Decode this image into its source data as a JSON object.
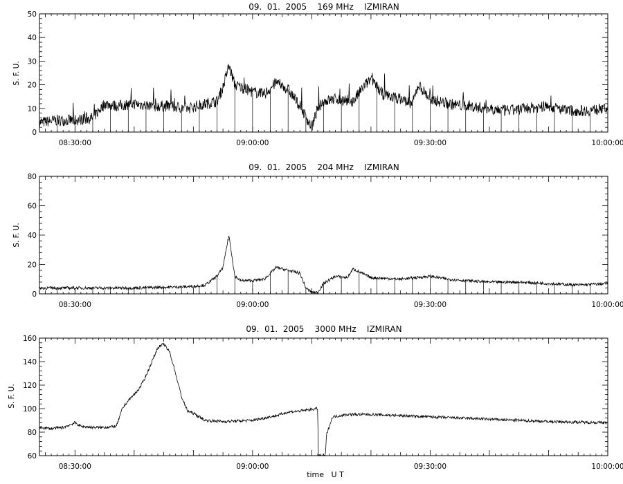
{
  "chart_data": [
    {
      "type": "line",
      "title": "09.  01.  2005    169 MHz    IZMIRAN",
      "ylabel": "S. F. U.",
      "xlabel": "",
      "xlim": [
        "08:24:00",
        "10:00:00"
      ],
      "ylim": [
        0,
        50
      ],
      "yticks": [
        0,
        10,
        20,
        30,
        40,
        50
      ],
      "xticks": [
        "08:30:00",
        "09:00:00",
        "09:30:00",
        "10:00:00"
      ],
      "series": [
        {
          "x": [
            "08:24",
            "08:27",
            "08:30",
            "08:33",
            "08:35",
            "08:37",
            "08:40",
            "08:43",
            "08:46",
            "08:49",
            "08:52",
            "08:54",
            "08:55",
            "08:56",
            "08:57",
            "08:58",
            "09:00",
            "09:02",
            "09:04",
            "09:06",
            "09:08",
            "09:10",
            "09:11",
            "09:12",
            "09:14",
            "09:17",
            "09:19",
            "09:20",
            "09:22",
            "09:25",
            "09:27",
            "09:28",
            "09:30",
            "09:33",
            "09:36",
            "09:40",
            "09:43",
            "09:46",
            "09:50",
            "09:53",
            "09:56",
            "10:00"
          ],
          "values": [
            4,
            5,
            5,
            6,
            12,
            11,
            12,
            11,
            11,
            10,
            12,
            13,
            19,
            28,
            20,
            19,
            17,
            16,
            21,
            18,
            11,
            2,
            10,
            13,
            14,
            13,
            20,
            22,
            16,
            14,
            12,
            20,
            14,
            12,
            11,
            10,
            9,
            10,
            11,
            9,
            9,
            10
          ]
        }
      ]
    },
    {
      "type": "line",
      "title": "09.  01.  2005    204 MHz    IZMIRAN",
      "ylabel": "S. F. U.",
      "xlabel": "",
      "xlim": [
        "08:24:00",
        "10:00:00"
      ],
      "ylim": [
        0,
        80
      ],
      "yticks": [
        0,
        20,
        40,
        60,
        80
      ],
      "xticks": [
        "08:30:00",
        "09:00:00",
        "09:30:00",
        "10:00:00"
      ],
      "series": [
        {
          "x": [
            "08:24",
            "08:30",
            "08:40",
            "08:50",
            "08:52",
            "08:54",
            "08:55",
            "08:56",
            "08:57",
            "08:58",
            "09:00",
            "09:02",
            "09:04",
            "09:06",
            "09:08",
            "09:09",
            "09:10",
            "09:11",
            "09:12",
            "09:14",
            "09:16",
            "09:17",
            "09:20",
            "09:25",
            "09:30",
            "09:33",
            "09:36",
            "09:40",
            "09:45",
            "09:50",
            "09:55",
            "10:00"
          ],
          "values": [
            4,
            4,
            4,
            5,
            6,
            12,
            18,
            40,
            12,
            9,
            9,
            10,
            18,
            16,
            14,
            4,
            1,
            1,
            7,
            12,
            11,
            17,
            11,
            10,
            12,
            10,
            9,
            8,
            8,
            7,
            6,
            7
          ]
        }
      ]
    },
    {
      "type": "line",
      "title": "09.  01.  2005    3000 MHz    IZMIRAN",
      "ylabel": "S. F. U.",
      "xlabel": "time   U T",
      "xlim": [
        "08:24:00",
        "10:00:00"
      ],
      "ylim": [
        60,
        160
      ],
      "yticks": [
        60,
        80,
        100,
        120,
        140,
        160
      ],
      "xticks": [
        "08:30:00",
        "09:00:00",
        "09:30:00",
        "10:00:00"
      ],
      "series": [
        {
          "x": [
            "08:24",
            "08:26",
            "08:28",
            "08:30",
            "08:31",
            "08:33",
            "08:35",
            "08:37",
            "08:38",
            "08:39",
            "08:40",
            "08:41",
            "08:42",
            "08:43",
            "08:44",
            "08:45",
            "08:46",
            "08:47",
            "08:48",
            "08:49",
            "08:50",
            "08:51",
            "08:52",
            "08:55",
            "09:00",
            "09:04",
            "09:06",
            "09:08",
            "09:11",
            "09:11.1",
            "09:12.3",
            "09:12.5",
            "09:13.5",
            "09:16",
            "09:20",
            "09:30",
            "09:40",
            "09:50",
            "10:00"
          ],
          "values": [
            84,
            83,
            84,
            88,
            85,
            84,
            84,
            85,
            100,
            107,
            112,
            118,
            128,
            140,
            152,
            155,
            148,
            130,
            110,
            98,
            96,
            93,
            90,
            89,
            90,
            94,
            97,
            98,
            100,
            60,
            60,
            78,
            93,
            95,
            95,
            93,
            91,
            89,
            88
          ]
        }
      ]
    }
  ]
}
